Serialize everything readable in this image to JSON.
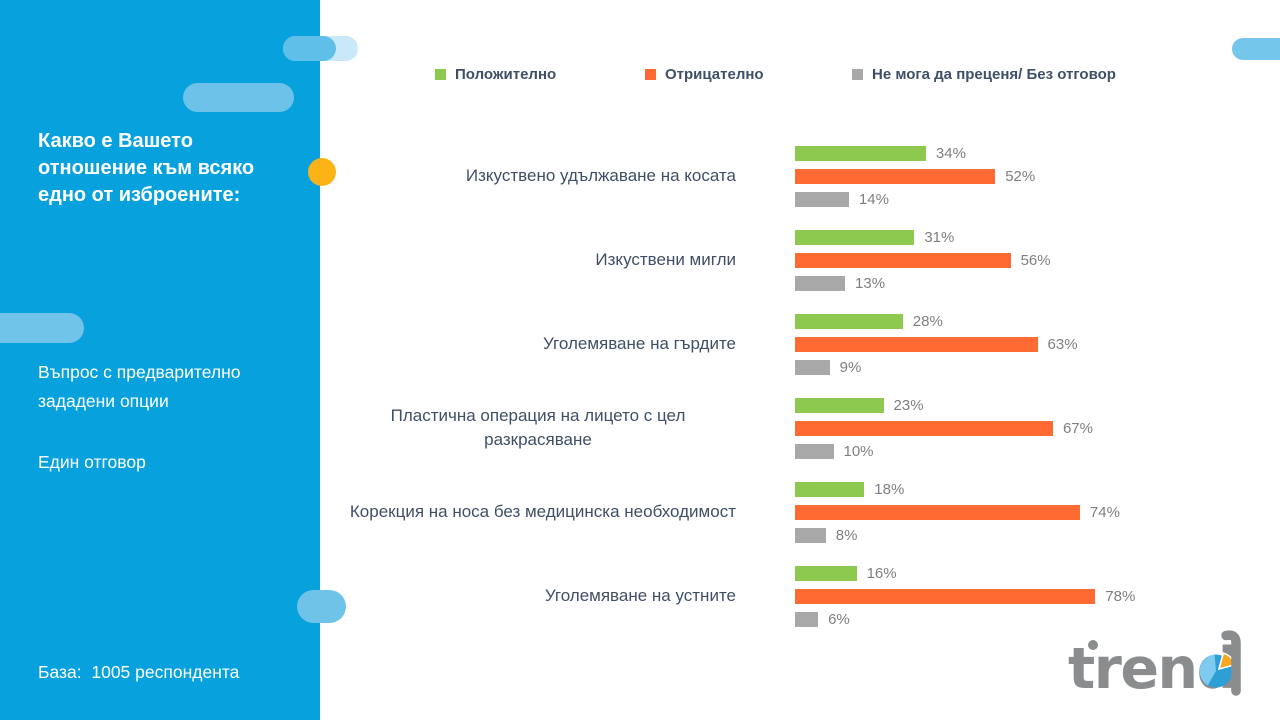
{
  "colors": {
    "panel_blue": "#07A2DE",
    "pill_light_blue": "#6CC2E9",
    "pill_pale_blue": "#C9E9F8",
    "accent_circle_orange": "#FCB316",
    "positive_green": "#8DC94F",
    "negative_orange": "#FF6A33",
    "neutral_gray": "#A8A8A8",
    "label_dark": "#3F4F66",
    "value_gray": "#7F7F7F",
    "logo_gray": "#8A8C8E"
  },
  "sidebar": {
    "title": "Какво е Вашето отношение към всяко едно от изброените:",
    "question_type": "Въпрос с предварително зададени опции",
    "answer_type": "Един отговор",
    "base": "База:  1005 респондента"
  },
  "chart_data": {
    "type": "bar",
    "orientation": "horizontal",
    "categories": [
      "Изкуствено удължаване на косата",
      "Изкуствени мигли",
      "Уголемяване на гърдите",
      "Пластична операция на лицето с цел разкрасяване",
      "Корекция на носа без медицинска необходимост",
      "Уголемяване на устните"
    ],
    "series": [
      {
        "name": "Положително",
        "color": "#8DC94F",
        "values": [
          34,
          31,
          28,
          23,
          18,
          16
        ]
      },
      {
        "name": "Отрицателно",
        "color": "#FF6A33",
        "values": [
          52,
          56,
          63,
          67,
          74,
          78
        ]
      },
      {
        "name": "Не мога да преценя/ Без отговор",
        "color": "#A8A8A8",
        "values": [
          14,
          13,
          9,
          10,
          8,
          6
        ]
      }
    ],
    "value_suffix": "%",
    "xlim": [
      0,
      100
    ],
    "legend_position": "top",
    "grid": false
  },
  "logo": {
    "text": "trend"
  }
}
